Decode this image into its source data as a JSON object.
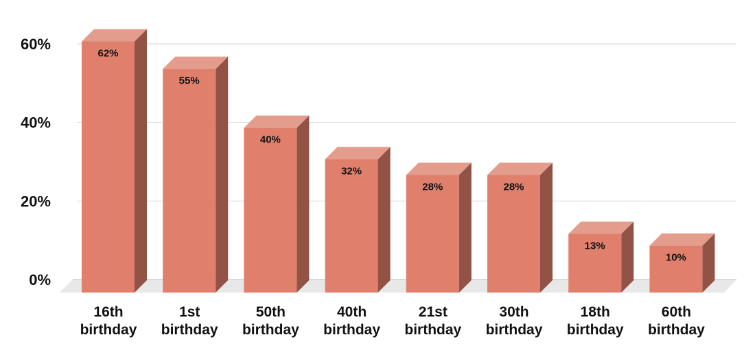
{
  "chart_data": {
    "type": "bar",
    "style": "3d-column",
    "categories": [
      [
        "16th",
        "birthday"
      ],
      [
        "1st",
        "birthday"
      ],
      [
        "50th",
        "birthday"
      ],
      [
        "40th",
        "birthday"
      ],
      [
        "21st",
        "birthday"
      ],
      [
        "30th",
        "birthday"
      ],
      [
        "18th",
        "birthday"
      ],
      [
        "60th",
        "birthday"
      ]
    ],
    "values": [
      62,
      55,
      40,
      32,
      28,
      28,
      13,
      10
    ],
    "value_labels": [
      "62%",
      "55%",
      "40%",
      "32%",
      "28%",
      "28%",
      "13%",
      "10%"
    ],
    "y_ticks": [
      0,
      20,
      40,
      60
    ],
    "y_tick_labels": [
      "0%",
      "20%",
      "40%",
      "60%"
    ],
    "ylim": [
      0,
      60
    ],
    "grid": true,
    "legend": "none",
    "colors": {
      "bar_front": "#df7f6c",
      "bar_side": "#925246",
      "bar_top": "#e49c8c",
      "floor": "#e8e8e8",
      "grid": "#d4d4d4"
    }
  }
}
